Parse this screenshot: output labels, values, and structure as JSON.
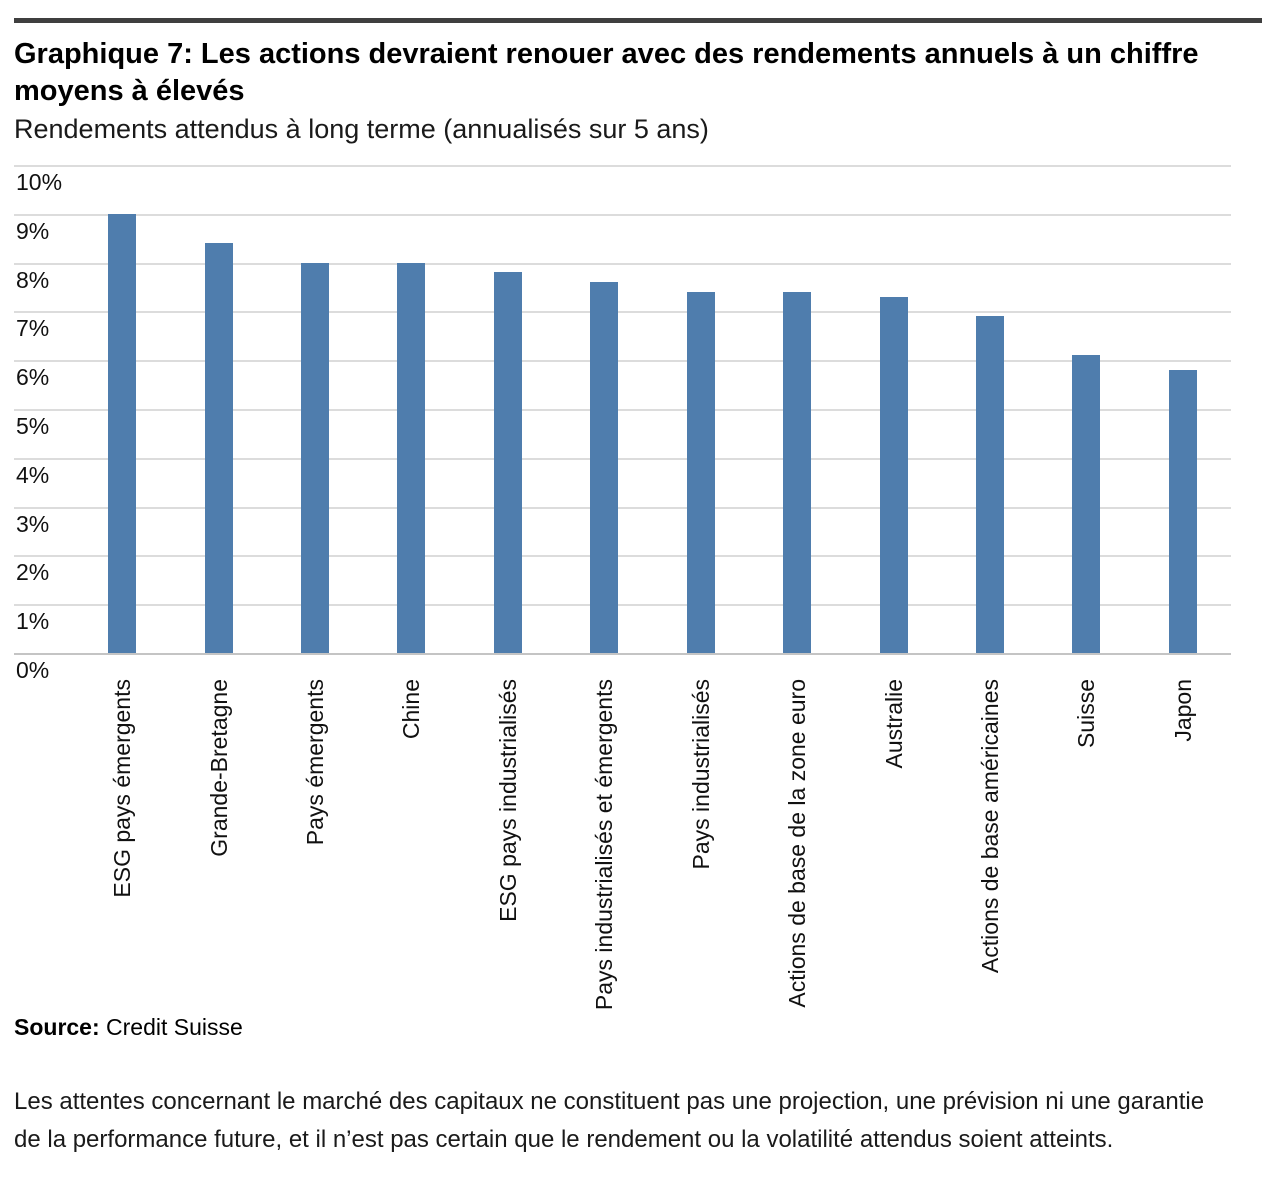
{
  "header": {
    "title": "Graphique 7: Les actions devraient renouer avec des rendements annuels à un chiffre moyens à élevés",
    "subtitle": "Rendements attendus à long terme (annualisés sur 5 ans)"
  },
  "chart_data": {
    "type": "bar",
    "title": "Graphique 7: Les actions devraient renouer avec des rendements annuels à un chiffre moyens à élevés",
    "subtitle": "Rendements attendus à long terme (annualisés sur 5 ans)",
    "categories": [
      "ESG pays émergents",
      "Grande-Bretagne",
      "Pays émergents",
      "Chine",
      "ESG pays industrialisés",
      "Pays industrialisés et émergents",
      "Pays industrialisés",
      "Actions de base de la zone euro",
      "Australie",
      "Actions de base américaines",
      "Suisse",
      "Japon"
    ],
    "values": [
      9.0,
      8.4,
      8.0,
      8.0,
      7.8,
      7.6,
      7.4,
      7.4,
      7.3,
      6.9,
      6.1,
      5.8
    ],
    "unit": "%",
    "xlabel": "",
    "ylabel": "",
    "ylim": [
      0,
      10
    ],
    "ytick_step": 1,
    "ytick_labels": [
      "0%",
      "1%",
      "2%",
      "3%",
      "4%",
      "5%",
      "6%",
      "7%",
      "8%",
      "9%",
      "10%"
    ],
    "grid": true,
    "legend_position": "none",
    "bar_color": "#4f7dad",
    "gridline_color": "#dcdcdc",
    "axis_line_color": "#c4c4c4"
  },
  "source": {
    "label": "Source:",
    "text": "Credit Suisse"
  },
  "footnote": "Les attentes concernant le marché des capitaux ne constituent pas une projection, une prévision ni une garantie de la performance future, et il n’est pas certain que le rendement ou la volatilité attendus soient atteints."
}
